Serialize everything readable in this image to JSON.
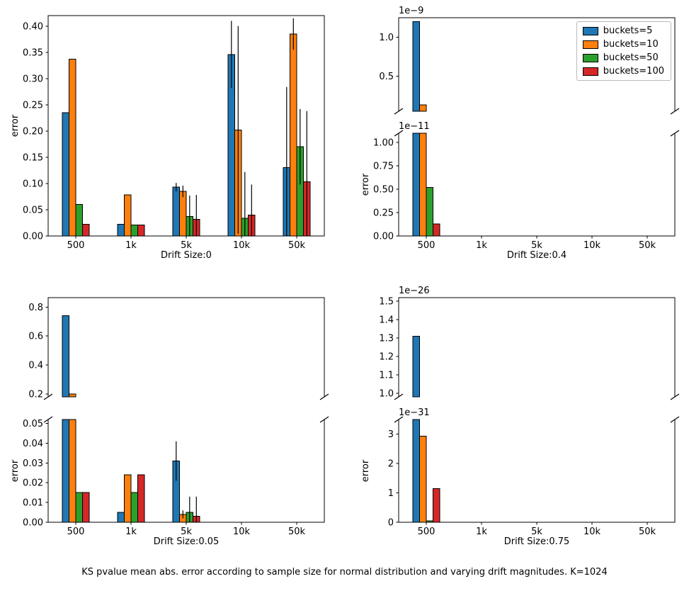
{
  "figure": {
    "caption": "KS pvalue mean abs. error according to sample size for normal distribution and varying drift magnitudes. K=1024",
    "background": "#ffffff"
  },
  "legend": {
    "location": "upper right of top-right subplot",
    "items": [
      {
        "label": "buckets=5",
        "color": "#1f77b4"
      },
      {
        "label": "buckets=10",
        "color": "#ff7f0e"
      },
      {
        "label": "buckets=50",
        "color": "#2ca02c"
      },
      {
        "label": "buckets=100",
        "color": "#d62728"
      }
    ]
  },
  "chart_data": [
    {
      "type": "bar",
      "title": "",
      "xlabel": "Drift Size:0",
      "ylabel": "error",
      "value_unit": "1",
      "categories": [
        "500",
        "1k",
        "5k",
        "10k",
        "50k"
      ],
      "series": [
        {
          "name": "buckets=5",
          "color": "#1f77b4",
          "values": [
            0.235,
            0.022,
            0.093,
            0.346,
            0.13
          ],
          "errors": [
            0,
            0,
            0.008,
            0.064,
            0.154
          ]
        },
        {
          "name": "buckets=10",
          "color": "#ff7f0e",
          "values": [
            0.337,
            0.078,
            0.085,
            0.202,
            0.385
          ],
          "errors": [
            0,
            0,
            0.011,
            0.198,
            0.03
          ]
        },
        {
          "name": "buckets=50",
          "color": "#2ca02c",
          "values": [
            0.06,
            0.021,
            0.037,
            0.034,
            0.17
          ],
          "errors": [
            0,
            0,
            0.04,
            0.088,
            0.072
          ]
        },
        {
          "name": "buckets=100",
          "color": "#d62728",
          "values": [
            0.022,
            0.021,
            0.032,
            0.04,
            0.103
          ],
          "errors": [
            0,
            0,
            0.046,
            0.058,
            0.135
          ]
        }
      ],
      "panels": [
        {
          "position": "full",
          "scale_label": "",
          "unit": 1,
          "ylim": [
            0,
            0.42
          ],
          "tick_vals": [
            0,
            0.05,
            0.1,
            0.15,
            0.2,
            0.25,
            0.3,
            0.35,
            0.4
          ],
          "tick_labels": [
            "0.00",
            "0.05",
            "0.10",
            "0.15",
            "0.20",
            "0.25",
            "0.30",
            "0.35",
            "0.40"
          ]
        }
      ]
    },
    {
      "type": "bar-broken",
      "title": "",
      "xlabel": "Drift Size:0.4",
      "ylabel": "error",
      "value_unit": "1e-11",
      "categories": [
        "500",
        "1k",
        "5k",
        "10k",
        "50k"
      ],
      "series": [
        {
          "name": "buckets=5",
          "color": "#1f77b4",
          "values": [
            120,
            0,
            0,
            0,
            0
          ],
          "errors": [
            0,
            0,
            0,
            0,
            0
          ]
        },
        {
          "name": "buckets=10",
          "color": "#ff7f0e",
          "values": [
            13,
            0,
            0,
            0,
            0
          ],
          "errors": [
            0,
            0,
            0,
            0,
            0
          ]
        },
        {
          "name": "buckets=50",
          "color": "#2ca02c",
          "values": [
            0.52,
            0,
            0,
            0,
            0
          ],
          "errors": [
            0,
            0,
            0,
            0,
            0
          ]
        },
        {
          "name": "buckets=100",
          "color": "#d62728",
          "values": [
            0.13,
            0,
            0,
            0,
            0
          ],
          "errors": [
            0,
            0,
            0,
            0,
            0
          ]
        }
      ],
      "panels": [
        {
          "position": "top",
          "scale_label": "1e−9",
          "unit": 100,
          "ylim": [
            0.05,
            1.25
          ],
          "tick_vals": [
            0.5,
            1.0
          ],
          "tick_labels": [
            "0.5",
            "1.0"
          ]
        },
        {
          "position": "bottom",
          "scale_label": "1e−11",
          "unit": 1,
          "ylim": [
            0,
            1.1
          ],
          "tick_vals": [
            0,
            0.25,
            0.5,
            0.75,
            1.0
          ],
          "tick_labels": [
            "0.00",
            "0.25",
            "0.50",
            "0.75",
            "1.00"
          ]
        }
      ]
    },
    {
      "type": "bar-broken",
      "title": "",
      "xlabel": "Drift Size:0.05",
      "ylabel": "error",
      "value_unit": "1",
      "categories": [
        "500",
        "1k",
        "5k",
        "10k",
        "50k"
      ],
      "series": [
        {
          "name": "buckets=5",
          "color": "#1f77b4",
          "values": [
            0.74,
            0.005,
            0.031,
            0,
            0
          ],
          "errors": [
            0,
            0,
            0.01,
            0,
            0
          ]
        },
        {
          "name": "buckets=10",
          "color": "#ff7f0e",
          "values": [
            0.2,
            0.024,
            0.004,
            0,
            0
          ],
          "errors": [
            0,
            0,
            0.002,
            0,
            0
          ]
        },
        {
          "name": "buckets=50",
          "color": "#2ca02c",
          "values": [
            0.015,
            0.015,
            0.005,
            0,
            0
          ],
          "errors": [
            0,
            0,
            0.008,
            0,
            0
          ]
        },
        {
          "name": "buckets=100",
          "color": "#d62728",
          "values": [
            0.015,
            0.024,
            0.003,
            0,
            0
          ],
          "errors": [
            0,
            0,
            0.01,
            0,
            0
          ]
        }
      ],
      "panels": [
        {
          "position": "top",
          "scale_label": "",
          "unit": 1,
          "ylim": [
            0.18,
            0.865
          ],
          "tick_vals": [
            0.2,
            0.4,
            0.6,
            0.8
          ],
          "tick_labels": [
            "0.2",
            "0.4",
            "0.6",
            "0.8"
          ]
        },
        {
          "position": "bottom",
          "scale_label": "",
          "unit": 1,
          "ylim": [
            0,
            0.052
          ],
          "tick_vals": [
            0,
            0.01,
            0.02,
            0.03,
            0.04,
            0.05
          ],
          "tick_labels": [
            "0.00",
            "0.01",
            "0.02",
            "0.03",
            "0.04",
            "0.05"
          ]
        }
      ]
    },
    {
      "type": "bar-broken",
      "title": "",
      "xlabel": "Drift Size:0.75",
      "ylabel": "error",
      "value_unit": "1e-31",
      "categories": [
        "500",
        "1k",
        "5k",
        "10k",
        "50k"
      ],
      "series": [
        {
          "name": "buckets=5",
          "color": "#1f77b4",
          "values": [
            131000,
            0,
            0,
            0,
            0
          ],
          "errors": [
            0,
            0,
            0,
            0,
            0
          ]
        },
        {
          "name": "buckets=10",
          "color": "#ff7f0e",
          "values": [
            2.93,
            0,
            0,
            0,
            0
          ],
          "errors": [
            0,
            0,
            0,
            0,
            0
          ]
        },
        {
          "name": "buckets=50",
          "color": "#2ca02c",
          "values": [
            0.05,
            0,
            0,
            0,
            0
          ],
          "errors": [
            0,
            0,
            0,
            0,
            0
          ]
        },
        {
          "name": "buckets=100",
          "color": "#d62728",
          "values": [
            1.15,
            0,
            0,
            0,
            0
          ],
          "errors": [
            0,
            0,
            0,
            0,
            0
          ]
        }
      ],
      "panels": [
        {
          "position": "top",
          "scale_label": "1e−26",
          "unit": 100000,
          "ylim": [
            0.98,
            1.52
          ],
          "tick_vals": [
            1.0,
            1.1,
            1.2,
            1.3,
            1.4,
            1.5
          ],
          "tick_labels": [
            "1.0",
            "1.1",
            "1.2",
            "1.3",
            "1.4",
            "1.5"
          ]
        },
        {
          "position": "bottom",
          "scale_label": "1e−31",
          "unit": 1,
          "ylim": [
            0,
            3.5
          ],
          "tick_vals": [
            0,
            1,
            2,
            3
          ],
          "tick_labels": [
            "0",
            "1",
            "2",
            "3"
          ]
        }
      ]
    }
  ]
}
